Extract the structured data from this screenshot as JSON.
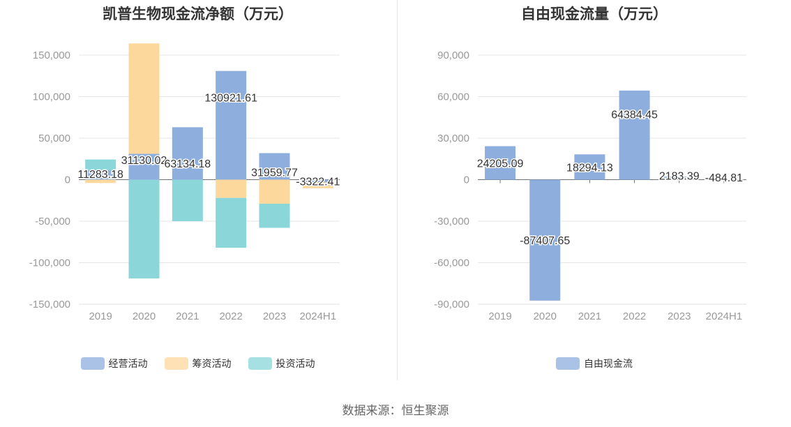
{
  "source": "数据来源：恒生聚源",
  "charts": {
    "left": {
      "title": "凯普生物现金流净额（万元）"
    },
    "right": {
      "title": "自由现金流量（万元）"
    }
  },
  "chart_data": [
    {
      "type": "bar",
      "stacked": true,
      "title": "凯普生物现金流净额（万元）",
      "categories": [
        "2019",
        "2020",
        "2021",
        "2022",
        "2023",
        "2024H1"
      ],
      "ylim": [
        -150000,
        150000
      ],
      "yticks": [
        150000,
        100000,
        50000,
        0,
        -50000,
        -100000,
        -150000
      ],
      "ytick_labels": [
        "150,000",
        "100,000",
        "50,000",
        "0",
        "-50,000",
        "-100,000",
        "-150,000"
      ],
      "grid": true,
      "legend_position": "bottom",
      "series": [
        {
          "name": "经营活动",
          "color": "#8eaedd",
          "values": [
            11283.18,
            31130.02,
            63134.18,
            130921.61,
            31959.77,
            -3322.41
          ]
        },
        {
          "name": "筹资活动",
          "color": "#fdd89c",
          "values": [
            -4000,
            133000,
            0,
            -22000,
            -29000,
            -7000
          ]
        },
        {
          "name": "投资活动",
          "color": "#8ad6d9",
          "values": [
            13000,
            -119000,
            -50000,
            -60000,
            -29000,
            0
          ]
        }
      ],
      "data_labels": [
        "11283.18",
        "31130.02",
        "63134.18",
        "130921.61",
        "31959.77",
        "-3322.41"
      ]
    },
    {
      "type": "bar",
      "title": "自由现金流量（万元）",
      "categories": [
        "2019",
        "2020",
        "2021",
        "2022",
        "2023",
        "2024H1"
      ],
      "ylim": [
        -90000,
        90000
      ],
      "yticks": [
        90000,
        60000,
        30000,
        0,
        -30000,
        -60000,
        -90000
      ],
      "ytick_labels": [
        "90,000",
        "60,000",
        "30,000",
        "0",
        "-30,000",
        "-60,000",
        "-90,000"
      ],
      "grid": true,
      "legend_position": "bottom",
      "series": [
        {
          "name": "自由现金流",
          "color": "#8eaedd",
          "values": [
            24205.09,
            -87407.65,
            18294.13,
            64384.45,
            2183.39,
            -484.81
          ]
        }
      ],
      "data_labels": [
        "24205.09",
        "-87407.65",
        "18294.13",
        "64384.45",
        "2183.39",
        "-484.81"
      ]
    }
  ]
}
